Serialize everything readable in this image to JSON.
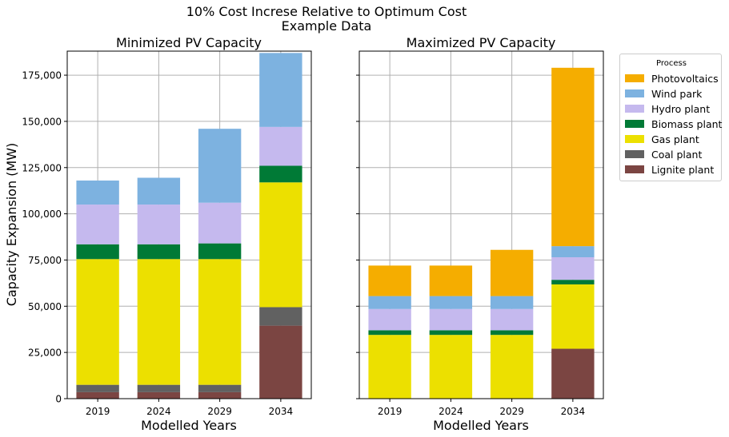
{
  "figure": {
    "title_line1": "10% Cost Increse Relative to Optimum Cost",
    "title_line2": "Example Data"
  },
  "chart_data": [
    {
      "type": "bar",
      "stacked": true,
      "title": "Minimized PV Capacity",
      "xlabel": "Modelled Years",
      "ylabel": "Capacity Expansion (MW)",
      "ylim": [
        0,
        188000
      ],
      "yticks": [
        0,
        25000,
        50000,
        75000,
        100000,
        125000,
        150000,
        175000
      ],
      "ytick_labels": [
        "0",
        "25,000",
        "50,000",
        "75,000",
        "100,000",
        "125,000",
        "150,000",
        "175,000"
      ],
      "grid": true,
      "categories": [
        "2019",
        "2024",
        "2029",
        "2034"
      ],
      "series": [
        {
          "name": "Lignite plant",
          "values": [
            3500,
            3500,
            3500,
            39500
          ]
        },
        {
          "name": "Coal plant",
          "values": [
            4000,
            4000,
            4000,
            10000
          ]
        },
        {
          "name": "Gas plant",
          "values": [
            68000,
            68000,
            68000,
            67500
          ]
        },
        {
          "name": "Biomass plant",
          "values": [
            8000,
            8000,
            8500,
            9000
          ]
        },
        {
          "name": "Hydro plant",
          "values": [
            21500,
            21500,
            22000,
            21000
          ]
        },
        {
          "name": "Wind park",
          "values": [
            13000,
            14500,
            40000,
            40000
          ]
        },
        {
          "name": "Photovoltaics",
          "values": [
            0,
            0,
            0,
            0
          ]
        }
      ]
    },
    {
      "type": "bar",
      "stacked": true,
      "title": "Maximized PV Capacity",
      "xlabel": "Modelled Years",
      "ylabel": "",
      "ylim": [
        0,
        188000
      ],
      "yticks": [
        0,
        25000,
        50000,
        75000,
        100000,
        125000,
        150000,
        175000
      ],
      "ytick_labels": [
        "",
        "",
        "",
        "",
        "",
        "",
        "",
        ""
      ],
      "grid": true,
      "categories": [
        "2019",
        "2024",
        "2029",
        "2034"
      ],
      "series": [
        {
          "name": "Lignite plant",
          "values": [
            0,
            0,
            0,
            27000
          ]
        },
        {
          "name": "Coal plant",
          "values": [
            0,
            0,
            0,
            0
          ]
        },
        {
          "name": "Gas plant",
          "values": [
            34500,
            34500,
            34500,
            34800
          ]
        },
        {
          "name": "Biomass plant",
          "values": [
            2500,
            2500,
            2500,
            2500
          ]
        },
        {
          "name": "Hydro plant",
          "values": [
            11500,
            11500,
            11500,
            12200
          ]
        },
        {
          "name": "Wind park",
          "values": [
            7000,
            7000,
            7000,
            6000
          ]
        },
        {
          "name": "Photovoltaics",
          "values": [
            16500,
            16500,
            25000,
            96500
          ]
        }
      ]
    }
  ],
  "legend": {
    "title": "Process",
    "placement": "outside-right",
    "items": [
      {
        "label": "Photovoltaics",
        "color": "#f5ad00"
      },
      {
        "label": "Wind park",
        "color": "#7db2e0"
      },
      {
        "label": "Hydro plant",
        "color": "#c5b9ee"
      },
      {
        "label": "Biomass plant",
        "color": "#007a36"
      },
      {
        "label": "Gas plant",
        "color": "#ece000"
      },
      {
        "label": "Coal plant",
        "color": "#616161"
      },
      {
        "label": "Lignite plant",
        "color": "#7b4542"
      }
    ]
  },
  "colors": {
    "Photovoltaics": "#f5ad00",
    "Wind park": "#7db2e0",
    "Hydro plant": "#c5b9ee",
    "Biomass plant": "#007a36",
    "Gas plant": "#ece000",
    "Coal plant": "#616161",
    "Lignite plant": "#7b4542",
    "grid": "#b0b0b0"
  }
}
